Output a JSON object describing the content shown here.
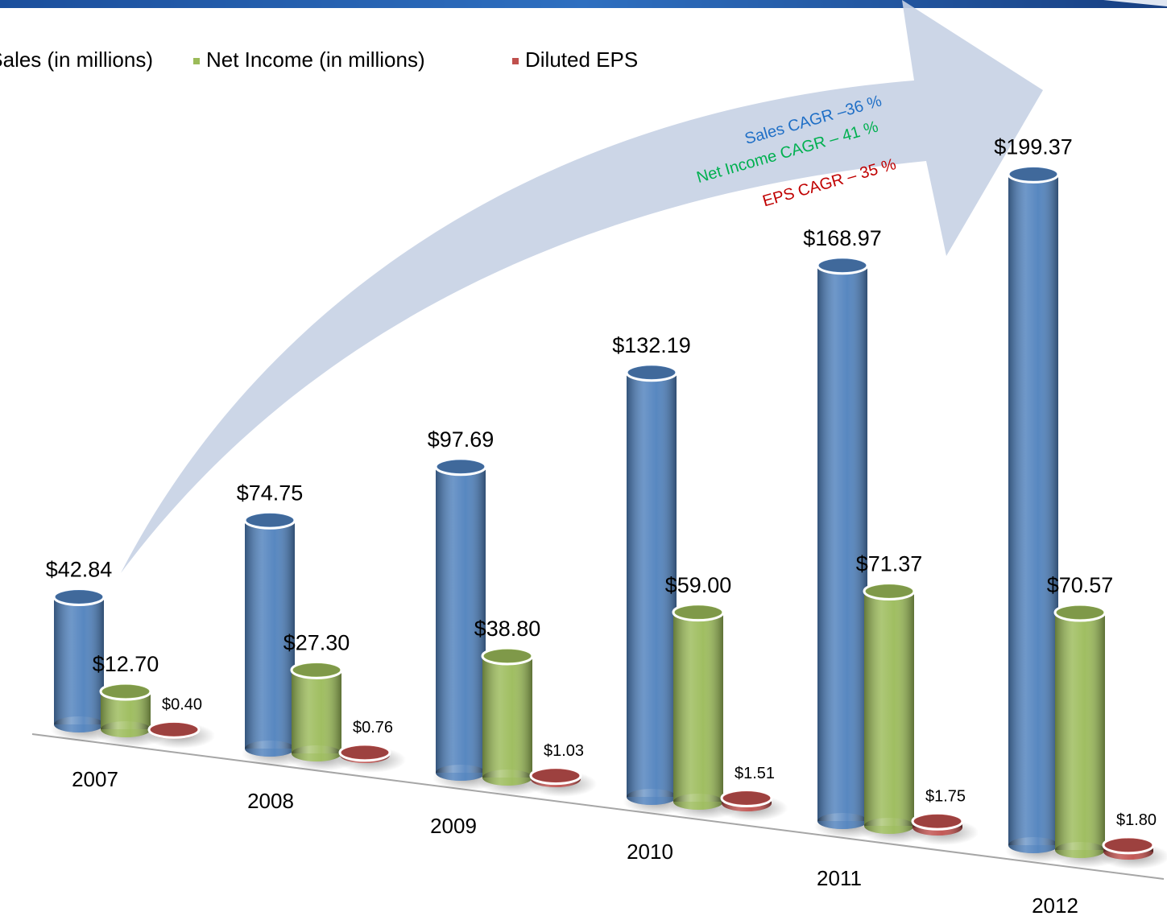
{
  "chart_data": {
    "type": "bar3d",
    "categories": [
      "2007",
      "2008",
      "2009",
      "2010",
      "2011",
      "2012"
    ],
    "series": [
      {
        "name": "Sales (in millions)",
        "color": "#4f81bd",
        "values": [
          42.84,
          74.75,
          97.69,
          132.19,
          168.97,
          199.37
        ],
        "value_labels": [
          "$42.84",
          "$74.75",
          "$97.69",
          "$132.19",
          "$168.97",
          "$199.37"
        ]
      },
      {
        "name": "Net Income (in millions)",
        "color": "#9bbb59",
        "values": [
          12.7,
          27.3,
          38.8,
          59.0,
          71.37,
          70.57
        ],
        "value_labels": [
          "$12.70",
          "$27.30",
          "$38.80",
          "$59.00",
          "$71.37",
          "$70.57"
        ]
      },
      {
        "name": "Diluted EPS",
        "color": "#c0504d",
        "values": [
          0.4,
          0.76,
          1.03,
          1.51,
          1.75,
          1.8
        ],
        "value_labels": [
          "$0.40",
          "$0.76",
          "$1.03",
          "$1.51",
          "$1.75",
          "$1.80"
        ]
      }
    ],
    "annotations": [
      {
        "text": "Sales CAGR –36 %",
        "color": "#1f6fc6"
      },
      {
        "text": "Net Income CAGR – 41 %",
        "color": "#00b050"
      },
      {
        "text": "EPS CAGR – 35 %",
        "color": "#c00000"
      }
    ],
    "legend": "top"
  }
}
